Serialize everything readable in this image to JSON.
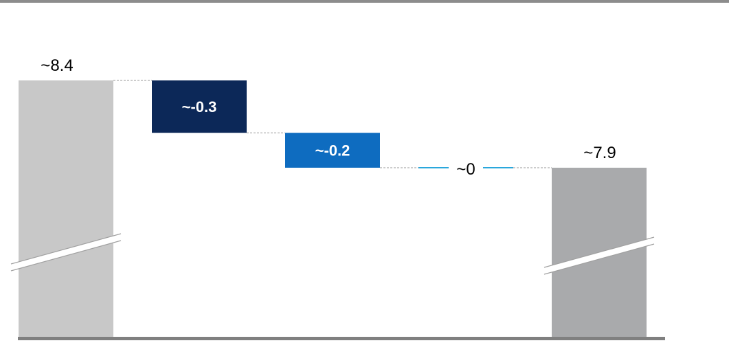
{
  "chart_data": {
    "type": "bar",
    "subtype": "waterfall",
    "bars": [
      {
        "kind": "total",
        "start": 0,
        "end": 8.4,
        "label": "~8.4",
        "label_position": "above",
        "color": "#c8c8c8"
      },
      {
        "kind": "delta",
        "start": 8.4,
        "end": 8.1,
        "label": "~-0.3",
        "label_position": "inside",
        "color": "#0c2858",
        "label_color": "#ffffff"
      },
      {
        "kind": "delta",
        "start": 8.1,
        "end": 7.9,
        "label": "~-0.2",
        "label_position": "inside",
        "color": "#0e6cc0",
        "label_color": "#ffffff"
      },
      {
        "kind": "delta",
        "start": 7.9,
        "end": 7.9,
        "label": "~0",
        "label_position": "inline",
        "color": "#2aa7dc"
      },
      {
        "kind": "total",
        "start": 0,
        "end": 7.9,
        "label": "~7.9",
        "label_position": "above",
        "color": "#a9aaac"
      }
    ],
    "axis_broken": true,
    "connectors": "dashed",
    "colors": {
      "baseline": "#808080",
      "top_rule": "#8c8c8c",
      "connector": "#9a9a9a"
    }
  }
}
